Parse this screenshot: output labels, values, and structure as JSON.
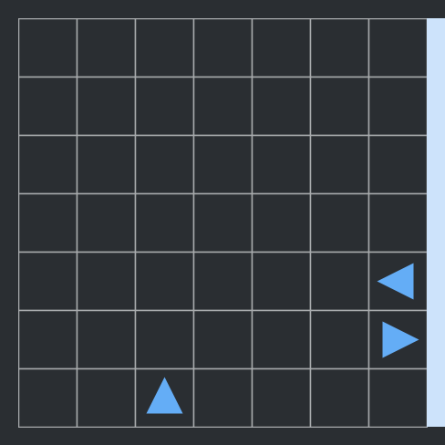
{
  "grid": {
    "rows": 7,
    "cols": 7,
    "line_color": "#a8abad",
    "cell_color": "#2a2e32",
    "background": "#2a2e32"
  },
  "side_panel": {
    "color": "#cde3fb"
  },
  "pieces": [
    {
      "name": "arrow-left-piece",
      "row": 4,
      "col": 6,
      "direction": "left",
      "color": "#64adf6"
    },
    {
      "name": "arrow-right-piece",
      "row": 5,
      "col": 6,
      "direction": "right",
      "color": "#64adf6"
    },
    {
      "name": "arrow-up-piece",
      "row": 6,
      "col": 2,
      "direction": "up",
      "color": "#64adf6"
    }
  ]
}
